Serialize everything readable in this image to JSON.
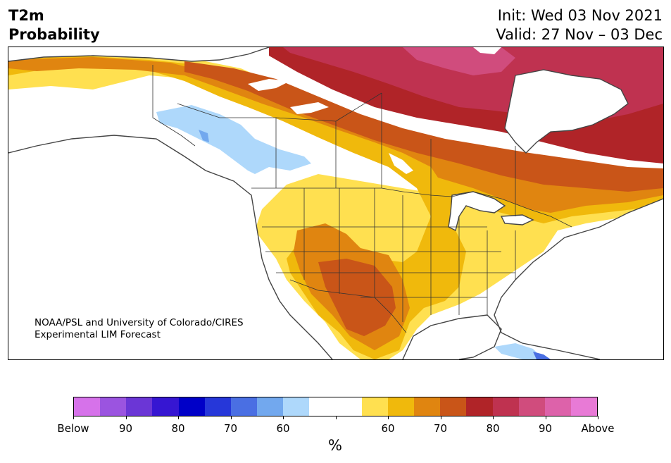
{
  "header": {
    "variable": "T2m",
    "product": "Probability",
    "init": "Init: Wed 03 Nov 2021",
    "valid": "Valid: 27 Nov – 03 Dec"
  },
  "credit": {
    "line1": "NOAA/PSL and University of Colorado/CIRES",
    "line2": "Experimental LIM Forecast"
  },
  "colorbar": {
    "colors": [
      "#d672ea",
      "#9b54e0",
      "#6b36d6",
      "#3616d2",
      "#0000c8",
      "#2637d9",
      "#4a6fe3",
      "#72a8ee",
      "#aed8fb",
      "#ffffff",
      "#ffffff",
      "#ffe050",
      "#f0b90c",
      "#e08510",
      "#c95518",
      "#b02428",
      "#bf3250",
      "#d04c7d",
      "#dd62aa",
      "#e87ad6"
    ],
    "labels": [
      {
        "text": "Below",
        "at": 0
      },
      {
        "text": "90",
        "at": 2
      },
      {
        "text": "80",
        "at": 4
      },
      {
        "text": "70",
        "at": 6
      },
      {
        "text": "60",
        "at": 8
      },
      {
        "text": "60",
        "at": 12
      },
      {
        "text": "70",
        "at": 14
      },
      {
        "text": "80",
        "at": 16
      },
      {
        "text": "90",
        "at": 18
      },
      {
        "text": "Above",
        "at": 20
      }
    ],
    "tick_positions": [
      0,
      2,
      4,
      6,
      8,
      10,
      12,
      14,
      16,
      18,
      20
    ],
    "unit": "%"
  },
  "map": {
    "region": "North America",
    "land_color": "#ffffff",
    "coast_color": "#444444"
  }
}
